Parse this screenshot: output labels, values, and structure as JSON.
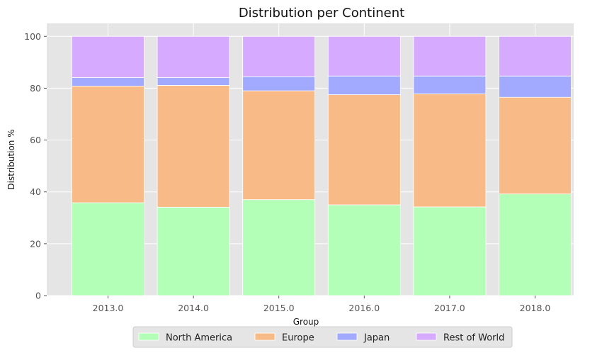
{
  "chart_data": {
    "type": "bar",
    "stacked": true,
    "title": "Distribution per Continent",
    "xlabel": "Group",
    "ylabel": "Distribution %",
    "categories": [
      "2013.0",
      "2014.0",
      "2015.0",
      "2016.0",
      "2017.0",
      "2018.0"
    ],
    "ylim": [
      0,
      105
    ],
    "yticks": [
      0,
      20,
      40,
      60,
      80,
      100
    ],
    "grid": true,
    "legend_position": "bottom-center",
    "series": [
      {
        "name": "North America",
        "color": "#b3ffb8",
        "values": [
          35.8,
          34.1,
          37.0,
          35.0,
          34.2,
          39.2
        ]
      },
      {
        "name": "Europe",
        "color": "#f8bb87",
        "values": [
          45.0,
          47.0,
          42.0,
          42.5,
          43.6,
          37.3
        ]
      },
      {
        "name": "Japan",
        "color": "#a2aaff",
        "values": [
          3.3,
          3.0,
          5.5,
          7.2,
          6.9,
          8.2
        ]
      },
      {
        "name": "Rest of World",
        "color": "#d5aaff",
        "values": [
          15.9,
          15.9,
          15.5,
          15.3,
          15.3,
          15.3
        ]
      }
    ]
  }
}
